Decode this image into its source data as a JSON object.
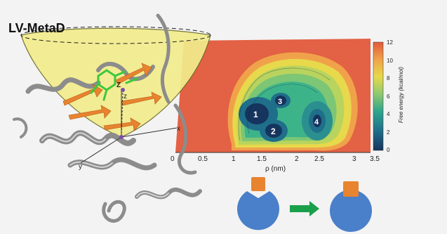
{
  "title": "LV-MetaD",
  "cone": {
    "axis_labels": [
      "z",
      "y",
      "x"
    ],
    "sphere_label": "Z"
  },
  "fes_panel": {
    "xlabel": "ρ (nm)",
    "xticks": [
      "0.5",
      "1",
      "1.5",
      "2",
      "2.5",
      "3",
      "3.5"
    ],
    "left_tick": "0",
    "colorbar": {
      "label": "Free energy (kcal/mol)",
      "ticks": [
        "0",
        "2",
        "4",
        "6",
        "8",
        "10",
        "12"
      ],
      "range": [
        0,
        12
      ],
      "colors": [
        "#15345e",
        "#1f6e8a",
        "#2ea58c",
        "#8fc970",
        "#e7d94b",
        "#f0a24a",
        "#e2593a"
      ]
    },
    "minima": [
      "1",
      "2",
      "3",
      "4"
    ]
  },
  "mechanism": {
    "ligand_color": "#e8832f",
    "protein_color": "#4a7fc9",
    "arrow_color": "#1aa04a"
  }
}
